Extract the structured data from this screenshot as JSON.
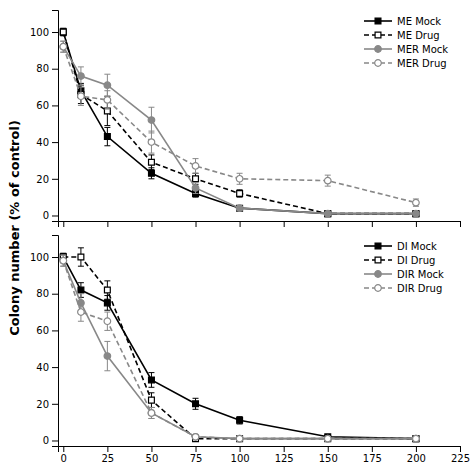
{
  "chart_data": [
    {
      "type": "line",
      "ylabel": "Colony number (% of control)",
      "x": [
        0,
        10,
        25,
        50,
        75,
        100,
        150,
        200
      ],
      "xlim": [
        -3,
        225
      ],
      "ylim": [
        -3,
        112
      ],
      "xticks": [
        0,
        25,
        50,
        75,
        100,
        125,
        150,
        175,
        200,
        225
      ],
      "yticks": [
        0,
        20,
        40,
        60,
        80,
        100
      ],
      "tick_labels": "y",
      "grid": false,
      "legend": "upper right",
      "series": [
        {
          "name": "ME Mock",
          "color": "#000000",
          "marker": "square",
          "line_style": "solid",
          "values": [
            100,
            68,
            43,
            23,
            12,
            4,
            1,
            1
          ],
          "errors": [
            2,
            4,
            5,
            3,
            2,
            1,
            0.5,
            0.5
          ]
        },
        {
          "name": "ME Drug",
          "color": "#000000",
          "marker": "open-square",
          "line_style": "dashed",
          "values": [
            100,
            66,
            57,
            29,
            20,
            12,
            1,
            1
          ],
          "errors": [
            2,
            5,
            8,
            4,
            3,
            2,
            0.5,
            0.5
          ]
        },
        {
          "name": "MER Mock",
          "color": "#888888",
          "marker": "circle",
          "line_style": "solid",
          "values": [
            92,
            76,
            71,
            52,
            15,
            4,
            1,
            1
          ],
          "errors": [
            3,
            5,
            6,
            7,
            3,
            1,
            0.5,
            0.5
          ]
        },
        {
          "name": "MER Drug",
          "color": "#888888",
          "marker": "open-circle",
          "line_style": "dashed",
          "values": [
            92,
            65,
            63,
            40,
            27,
            20,
            19,
            7
          ],
          "errors": [
            3,
            5,
            5,
            6,
            4,
            3,
            3,
            2
          ]
        }
      ]
    },
    {
      "type": "line",
      "x": [
        0,
        10,
        25,
        50,
        75,
        100,
        150,
        200
      ],
      "xlim": [
        -3,
        225
      ],
      "ylim": [
        -3,
        112
      ],
      "xticks": [
        0,
        25,
        50,
        75,
        100,
        125,
        150,
        175,
        200,
        225
      ],
      "yticks": [
        0,
        20,
        40,
        60,
        80,
        100
      ],
      "grid": false,
      "legend": "upper right",
      "series": [
        {
          "name": "DI Mock",
          "color": "#000000",
          "marker": "square",
          "line_style": "solid",
          "values": [
            100,
            82,
            75,
            33,
            20,
            11,
            2,
            1
          ],
          "errors": [
            2,
            4,
            4,
            4,
            3,
            2,
            1,
            0.5
          ]
        },
        {
          "name": "DI Drug",
          "color": "#000000",
          "marker": "open-square",
          "line_style": "dashed",
          "values": [
            100,
            100,
            82,
            22,
            1,
            1,
            1,
            1
          ],
          "errors": [
            2,
            5,
            5,
            4,
            1,
            0.5,
            0.5,
            0.5
          ]
        },
        {
          "name": "DIR Mock",
          "color": "#888888",
          "marker": "circle",
          "line_style": "solid",
          "values": [
            98,
            75,
            46,
            15,
            2,
            1,
            1,
            1
          ],
          "errors": [
            3,
            5,
            8,
            3,
            1,
            0.5,
            0.5,
            0.5
          ]
        },
        {
          "name": "DIR Drug",
          "color": "#888888",
          "marker": "open-circle",
          "line_style": "dashed",
          "values": [
            98,
            70,
            65,
            15,
            2,
            1,
            1,
            1
          ],
          "errors": [
            3,
            5,
            5,
            3,
            1,
            0.5,
            0.5,
            0.5
          ]
        }
      ]
    }
  ]
}
